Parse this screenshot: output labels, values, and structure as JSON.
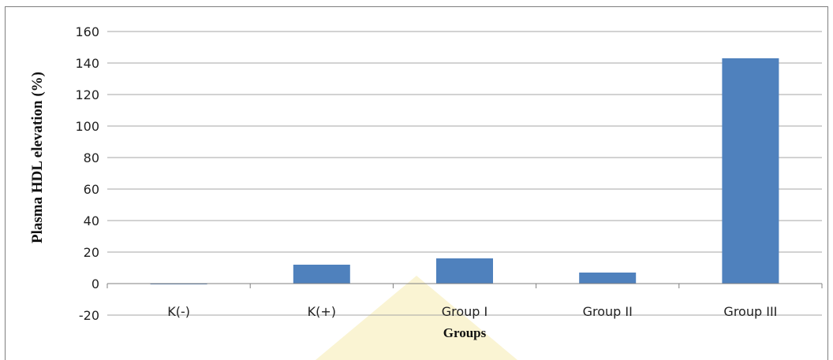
{
  "chart_data": {
    "type": "bar",
    "categories": [
      "K(-)",
      "K(+)",
      "Group I",
      "Group II",
      "Group III"
    ],
    "values": [
      -0.5,
      12,
      16,
      7,
      143
    ],
    "title": "",
    "xlabel": "Groups",
    "ylabel": "Plasma HDL elevation (%)",
    "ylim": [
      -20,
      160
    ],
    "yticks": [
      "160",
      "140",
      "120",
      "100",
      "80",
      "60",
      "40",
      "20",
      "0",
      "-20"
    ],
    "grid": true,
    "legend": "none",
    "colors": {
      "bar": "#4f81bd",
      "grid": "#a6a6a6",
      "axis": "#808080",
      "watermark": "#f2e07a"
    }
  }
}
